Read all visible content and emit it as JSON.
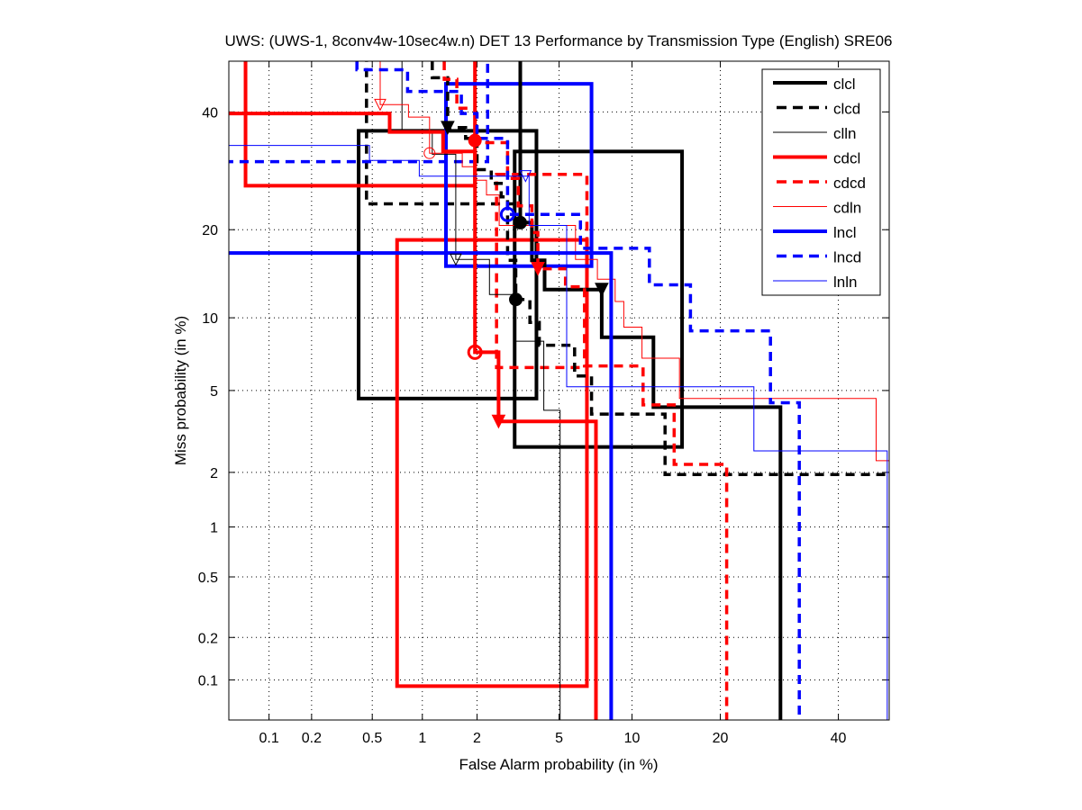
{
  "chart_data": {
    "type": "line",
    "title": "UWS: (UWS-1, 8conv4w-10sec4w.n) DET 13 Performance by Transmission Type (English) SRE06",
    "xlabel": "False Alarm probability (in %)",
    "ylabel": "Miss probability (in %)",
    "xscale": "normal-deviate",
    "yscale": "normal-deviate",
    "xlim": [
      0.05,
      50
    ],
    "ylim": [
      0.05,
      50
    ],
    "grid": true,
    "legend_position": "top-right",
    "xticks": [
      {
        "v": 0.1,
        "label": "0.1"
      },
      {
        "v": 0.2,
        "label": "0.2"
      },
      {
        "v": 0.5,
        "label": "0.5"
      },
      {
        "v": 1,
        "label": "1"
      },
      {
        "v": 2,
        "label": "2"
      },
      {
        "v": 5,
        "label": "5"
      },
      {
        "v": 10,
        "label": "10"
      },
      {
        "v": 20,
        "label": "20"
      },
      {
        "v": 40,
        "label": "40"
      }
    ],
    "yticks": [
      {
        "v": 0.1,
        "label": "0.1"
      },
      {
        "v": 0.2,
        "label": "0.2"
      },
      {
        "v": 0.5,
        "label": "0.5"
      },
      {
        "v": 1,
        "label": "1"
      },
      {
        "v": 2,
        "label": "2"
      },
      {
        "v": 5,
        "label": "5"
      },
      {
        "v": 10,
        "label": "10"
      },
      {
        "v": 20,
        "label": "20"
      },
      {
        "v": 40,
        "label": "40"
      }
    ],
    "series": [
      {
        "name": "clcl",
        "color": "#000000",
        "style": "thick",
        "points": [
          [
            3.3,
            50
          ],
          [
            3.3,
            21
          ],
          [
            3.75,
            21
          ],
          [
            3.75,
            16
          ],
          [
            4.3,
            16
          ],
          [
            4.3,
            12.7
          ],
          [
            7.6,
            12.7
          ],
          [
            7.6,
            8.4
          ],
          [
            12,
            8.4
          ],
          [
            12,
            4.2
          ],
          [
            29.4,
            4.2
          ],
          [
            29.4,
            0.05
          ]
        ],
        "markers": [
          {
            "fa": 3.3,
            "miss": 21,
            "shape": "circle",
            "filled": true
          },
          {
            "fa": 7.6,
            "miss": 12.7,
            "shape": "triangle",
            "filled": true
          }
        ],
        "boxes": [
          [
            0.41,
            3.94,
            4.6,
            36.4
          ],
          [
            3.1,
            15.1,
            2.7,
            32.6
          ]
        ]
      },
      {
        "name": "clcd",
        "color": "#000000",
        "style": "dashed",
        "points": [
          [
            1.14,
            50
          ],
          [
            1.14,
            46.7
          ],
          [
            1.39,
            46.7
          ],
          [
            1.39,
            37
          ],
          [
            1.74,
            37
          ],
          [
            1.74,
            35
          ],
          [
            2.0,
            35
          ],
          [
            2.0,
            29.4
          ],
          [
            2.37,
            29.4
          ],
          [
            2.37,
            27.1
          ],
          [
            2.66,
            27.1
          ],
          [
            2.66,
            24.9
          ],
          [
            2.86,
            24.9
          ],
          [
            2.86,
            16
          ],
          [
            3.14,
            16
          ],
          [
            3.14,
            11.7
          ],
          [
            3.67,
            11.7
          ],
          [
            3.67,
            9.6
          ],
          [
            4.06,
            9.6
          ],
          [
            4.06,
            7.8
          ],
          [
            5.85,
            7.8
          ],
          [
            5.85,
            5.8
          ],
          [
            6.9,
            5.8
          ],
          [
            6.9,
            3.9
          ],
          [
            13.2,
            3.9
          ],
          [
            13.2,
            1.95
          ],
          [
            50,
            1.95
          ]
        ],
        "markers": [
          {
            "fa": 1.39,
            "miss": 37,
            "shape": "triangle",
            "filled": true
          },
          {
            "fa": 3.14,
            "miss": 11.7,
            "shape": "circle",
            "filled": true
          }
        ],
        "boxes": [
          [
            0.46,
            3.3,
            23.8,
            60
          ]
        ]
      },
      {
        "name": "clln",
        "color": "#000000",
        "style": "thin",
        "points": [
          [
            0.76,
            50
          ],
          [
            0.76,
            36.4
          ],
          [
            1.14,
            36.4
          ],
          [
            1.14,
            32.1
          ],
          [
            1.54,
            32.1
          ],
          [
            1.54,
            16.1
          ],
          [
            2.32,
            16.1
          ],
          [
            2.32,
            12.2
          ],
          [
            3.1,
            12.2
          ],
          [
            3.1,
            8.1
          ],
          [
            4.26,
            8.1
          ],
          [
            4.26,
            4.06
          ],
          [
            5.05,
            4.06
          ],
          [
            5.05,
            0.05
          ]
        ],
        "markers": [
          {
            "fa": 1.54,
            "miss": 16.1,
            "shape": "triangle",
            "filled": false
          }
        ],
        "boxes": []
      },
      {
        "name": "cdcl",
        "color": "#ff0000",
        "style": "thick",
        "points": [
          [
            0.05,
            39.7
          ],
          [
            0.64,
            39.7
          ],
          [
            0.64,
            36.2
          ],
          [
            1.31,
            36.2
          ],
          [
            1.31,
            32.6
          ],
          [
            1.95,
            32.6
          ],
          [
            1.95,
            7.3
          ],
          [
            2.58,
            7.3
          ],
          [
            2.58,
            3.6
          ],
          [
            7.2,
            3.6
          ],
          [
            7.2,
            0.05
          ]
        ],
        "markers": [
          {
            "fa": 1.95,
            "miss": 34.6,
            "shape": "circle",
            "filled": true
          },
          {
            "fa": 1.95,
            "miss": 7.3,
            "shape": "circle",
            "filled": false
          },
          {
            "fa": 2.58,
            "miss": 3.6,
            "shape": "triangle",
            "filled": true
          }
        ],
        "boxes": [
          [
            0.067,
            1.95,
            26.7,
            60
          ],
          [
            0.71,
            6.6,
            0.09,
            18.6
          ]
        ]
      },
      {
        "name": "cdcd",
        "color": "#ff0000",
        "style": "dashed",
        "points": [
          [
            1.33,
            50
          ],
          [
            1.33,
            46.4
          ],
          [
            1.56,
            46.4
          ],
          [
            1.56,
            40.7
          ],
          [
            1.95,
            40.7
          ],
          [
            1.95,
            34.2
          ],
          [
            2.86,
            34.2
          ],
          [
            2.86,
            27.9
          ],
          [
            3.23,
            27.9
          ],
          [
            3.23,
            23.5
          ],
          [
            3.75,
            23.5
          ],
          [
            3.75,
            19.6
          ],
          [
            4.0,
            19.6
          ],
          [
            4.0,
            15
          ],
          [
            5.34,
            15
          ],
          [
            5.34,
            13
          ],
          [
            6.45,
            13
          ],
          [
            6.45,
            6.4
          ],
          [
            11,
            6.4
          ],
          [
            11,
            4.3
          ],
          [
            14.2,
            4.3
          ],
          [
            14.2,
            2.2
          ],
          [
            20.9,
            2.2
          ],
          [
            20.9,
            0.05
          ]
        ],
        "markers": [
          {
            "fa": 4.0,
            "miss": 15,
            "shape": "triangle",
            "filled": true
          }
        ],
        "boxes": [
          [
            2.52,
            6.6,
            6.3,
            28.6
          ]
        ]
      },
      {
        "name": "cdln",
        "color": "#ff0000",
        "style": "thin",
        "points": [
          [
            0.56,
            50
          ],
          [
            0.56,
            41.4
          ],
          [
            0.83,
            41.4
          ],
          [
            0.83,
            39
          ],
          [
            1.1,
            39
          ],
          [
            1.1,
            32.3
          ],
          [
            1.67,
            32.3
          ],
          [
            1.67,
            29.9
          ],
          [
            1.95,
            29.9
          ],
          [
            1.95,
            27.6
          ],
          [
            2.24,
            27.6
          ],
          [
            2.24,
            25.2
          ],
          [
            2.6,
            25.2
          ],
          [
            2.6,
            20.6
          ],
          [
            5.9,
            20.6
          ],
          [
            5.9,
            16.1
          ],
          [
            7.3,
            16.1
          ],
          [
            7.3,
            13.8
          ],
          [
            8.6,
            13.8
          ],
          [
            8.6,
            11.5
          ],
          [
            9.3,
            11.5
          ],
          [
            9.3,
            9.2
          ],
          [
            10.9,
            9.2
          ],
          [
            10.9,
            6.9
          ],
          [
            14.8,
            6.9
          ],
          [
            14.8,
            4.6
          ],
          [
            47.4,
            4.6
          ],
          [
            47.4,
            2.3
          ],
          [
            50,
            2.3
          ]
        ],
        "markers": [
          {
            "fa": 0.56,
            "miss": 41.4,
            "shape": "triangle",
            "filled": false
          },
          {
            "fa": 1.1,
            "miss": 32.3,
            "shape": "circle",
            "filled": false
          }
        ],
        "boxes": []
      },
      {
        "name": "lncl",
        "color": "#0000ff",
        "style": "thick",
        "points": [
          [
            0.05,
            16.9
          ],
          [
            8.3,
            16.9
          ],
          [
            8.3,
            0.05
          ]
        ],
        "markers": [],
        "boxes": [
          [
            1.36,
            6.9,
            15.3,
            45.5
          ]
        ]
      },
      {
        "name": "lncd",
        "color": "#0000ff",
        "style": "dashed",
        "points": [
          [
            0.4,
            50
          ],
          [
            0.4,
            48.3
          ],
          [
            0.82,
            48.3
          ],
          [
            0.82,
            44
          ],
          [
            1.65,
            44
          ],
          [
            1.65,
            39.7
          ],
          [
            2.0,
            39.7
          ],
          [
            2.0,
            35
          ],
          [
            2.86,
            35
          ],
          [
            2.86,
            22.2
          ],
          [
            6.2,
            22.2
          ],
          [
            6.2,
            17.5
          ],
          [
            11.6,
            17.5
          ],
          [
            11.6,
            13.2
          ],
          [
            16.1,
            13.2
          ],
          [
            16.1,
            8.9
          ],
          [
            27.7,
            8.9
          ],
          [
            27.7,
            4.4
          ],
          [
            32.7,
            4.4
          ],
          [
            32.7,
            0.05
          ]
        ],
        "markers": [
          {
            "fa": 2.86,
            "miss": 22.2,
            "shape": "circle",
            "filled": false
          }
        ],
        "boxes": [
          [
            0.01,
            2.27,
            30.8,
            60
          ]
        ]
      },
      {
        "name": "lnln",
        "color": "#0000ff",
        "style": "thin",
        "points": [
          [
            0.05,
            33.7
          ],
          [
            0.48,
            33.7
          ],
          [
            0.48,
            31
          ],
          [
            0.96,
            31
          ],
          [
            0.96,
            28.3
          ],
          [
            3.64,
            28.3
          ],
          [
            3.64,
            20.6
          ],
          [
            5.4,
            20.6
          ],
          [
            5.4,
            5.2
          ],
          [
            25,
            5.2
          ],
          [
            25,
            2.58
          ],
          [
            49.6,
            2.58
          ],
          [
            49.6,
            0.05
          ]
        ],
        "markers": [
          {
            "fa": 3.5,
            "miss": 28.3,
            "shape": "triangle",
            "filled": false
          }
        ],
        "boxes": []
      }
    ]
  }
}
